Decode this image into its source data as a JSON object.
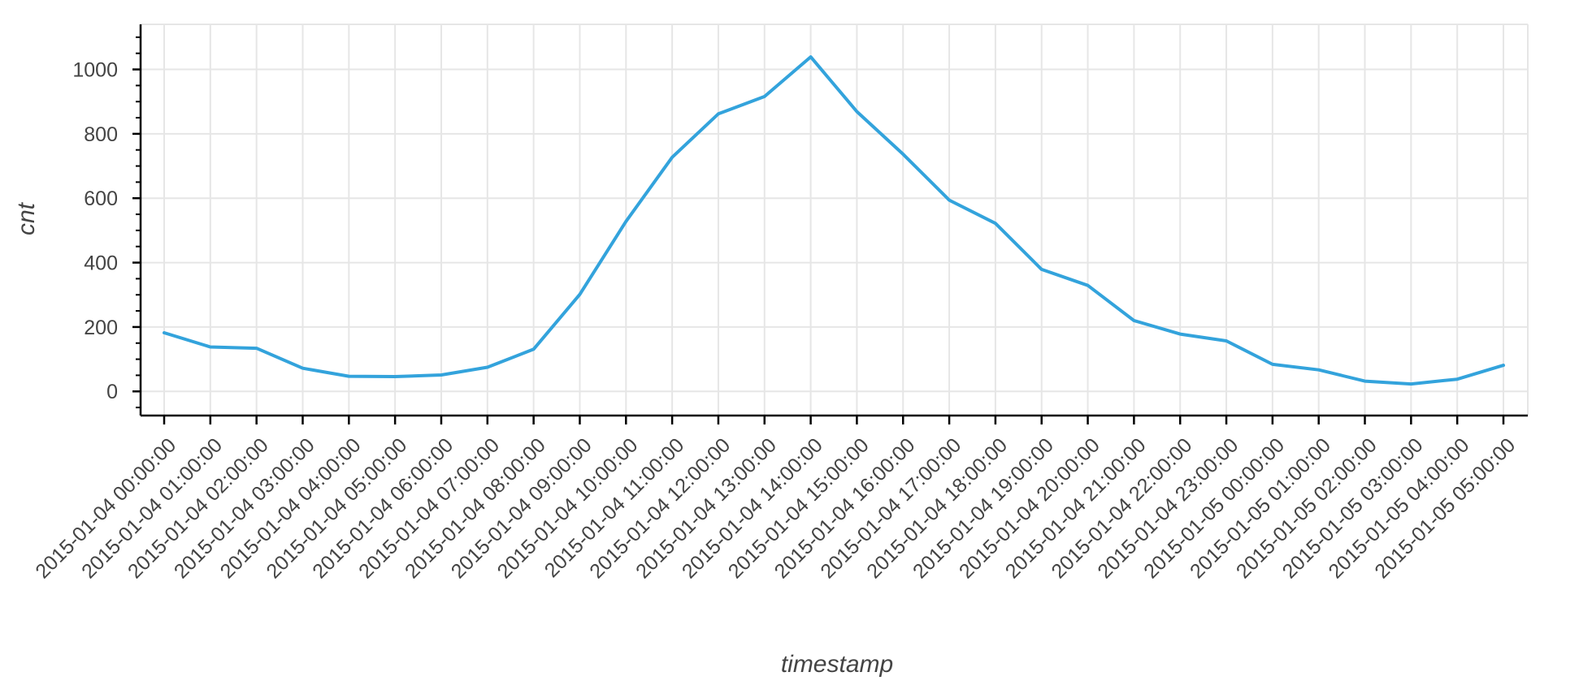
{
  "chart_data": {
    "type": "line",
    "title": "",
    "xlabel": "timestamp",
    "ylabel": "cnt",
    "x": [
      "2015-01-04 00:00:00",
      "2015-01-04 01:00:00",
      "2015-01-04 02:00:00",
      "2015-01-04 03:00:00",
      "2015-01-04 04:00:00",
      "2015-01-04 05:00:00",
      "2015-01-04 06:00:00",
      "2015-01-04 07:00:00",
      "2015-01-04 08:00:00",
      "2015-01-04 09:00:00",
      "2015-01-04 10:00:00",
      "2015-01-04 11:00:00",
      "2015-01-04 12:00:00",
      "2015-01-04 13:00:00",
      "2015-01-04 14:00:00",
      "2015-01-04 15:00:00",
      "2015-01-04 16:00:00",
      "2015-01-04 17:00:00",
      "2015-01-04 18:00:00",
      "2015-01-04 19:00:00",
      "2015-01-04 20:00:00",
      "2015-01-04 21:00:00",
      "2015-01-04 22:00:00",
      "2015-01-04 23:00:00",
      "2015-01-05 00:00:00",
      "2015-01-05 01:00:00",
      "2015-01-05 02:00:00",
      "2015-01-05 03:00:00",
      "2015-01-05 04:00:00",
      "2015-01-05 05:00:00"
    ],
    "series": [
      {
        "values": [
          182,
          138,
          134,
          72,
          47,
          46,
          51,
          75,
          131,
          301,
          528,
          727,
          862,
          916,
          1039,
          869,
          737,
          594,
          522,
          379,
          329,
          220,
          178,
          157,
          84,
          67,
          32,
          23,
          38,
          81
        ],
        "color": "#33a3dc"
      }
    ],
    "ylim": [
      -75,
      1140
    ],
    "yticks": [
      0,
      200,
      400,
      600,
      800,
      1000
    ],
    "y_minor_step": 50,
    "grid": true,
    "legend": "none"
  }
}
